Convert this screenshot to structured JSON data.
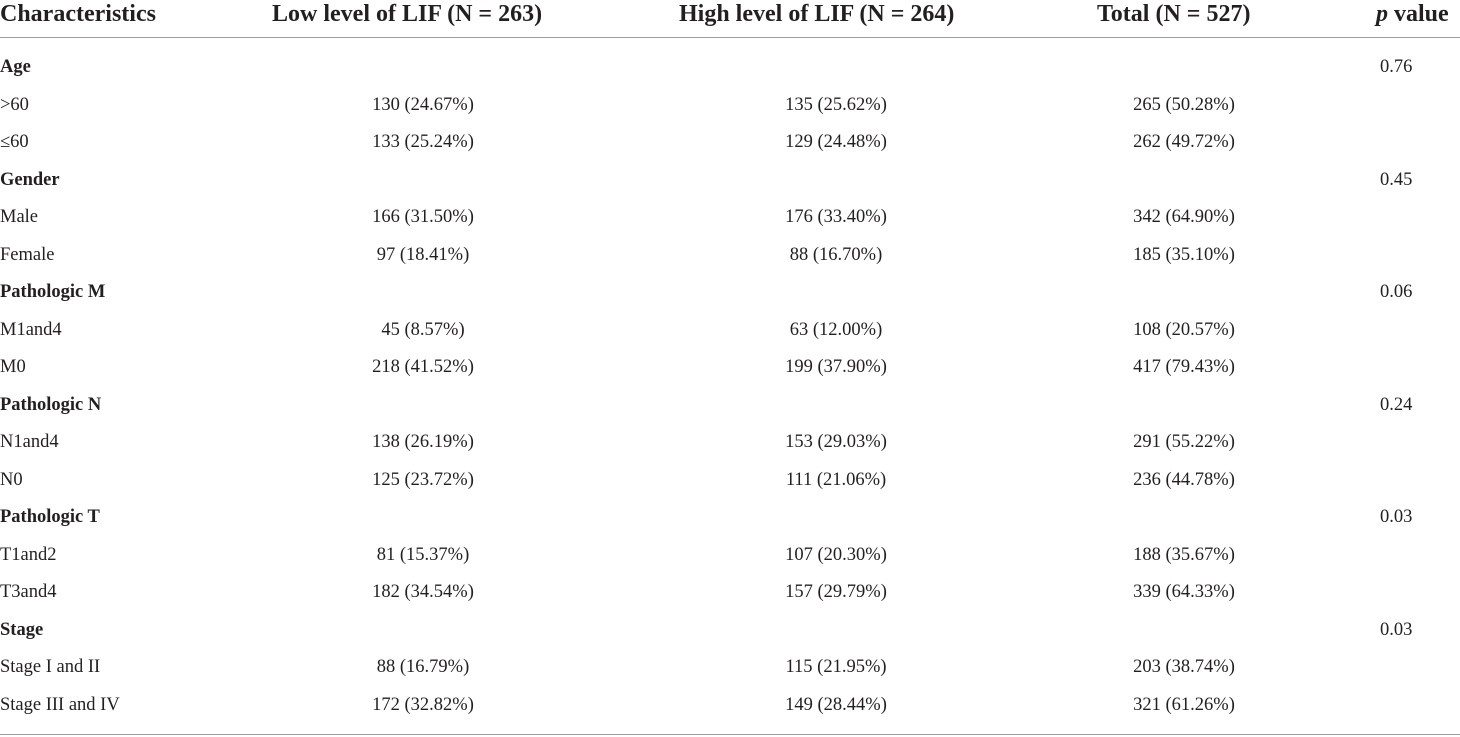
{
  "header": {
    "characteristics": "Characteristics",
    "low": "Low level of LIF (N = 263)",
    "high": "High level of LIF (N = 264)",
    "total": "Total (N = 527)",
    "p_italic": "p",
    "p_rest": " value"
  },
  "rows": [
    {
      "type": "group",
      "label": "Age",
      "low": "",
      "high": "",
      "total": "",
      "p": "0.76"
    },
    {
      "type": "item",
      "label": ">60",
      "low": "130 (24.67%)",
      "high": "135 (25.62%)",
      "total": "265 (50.28%)",
      "p": ""
    },
    {
      "type": "item",
      "label": "≤60",
      "low": "133 (25.24%)",
      "high": "129 (24.48%)",
      "total": "262 (49.72%)",
      "p": ""
    },
    {
      "type": "group",
      "label": "Gender",
      "low": "",
      "high": "",
      "total": "",
      "p": "0.45"
    },
    {
      "type": "item",
      "label": "Male",
      "low": "166 (31.50%)",
      "high": "176 (33.40%)",
      "total": "342 (64.90%)",
      "p": ""
    },
    {
      "type": "item",
      "label": "Female",
      "low": "97 (18.41%)",
      "high": "88 (16.70%)",
      "total": "185 (35.10%)",
      "p": ""
    },
    {
      "type": "group",
      "label": "Pathologic M",
      "low": "",
      "high": "",
      "total": "",
      "p": "0.06"
    },
    {
      "type": "item",
      "label": "M1and4",
      "low": "45 (8.57%)",
      "high": "63 (12.00%)",
      "total": "108 (20.57%)",
      "p": ""
    },
    {
      "type": "item",
      "label": "M0",
      "low": "218 (41.52%)",
      "high": "199 (37.90%)",
      "total": "417 (79.43%)",
      "p": ""
    },
    {
      "type": "group",
      "label": "Pathologic N",
      "low": "",
      "high": "",
      "total": "",
      "p": "0.24"
    },
    {
      "type": "item",
      "label": "N1and4",
      "low": "138 (26.19%)",
      "high": "153 (29.03%)",
      "total": "291 (55.22%)",
      "p": ""
    },
    {
      "type": "item",
      "label": "N0",
      "low": "125 (23.72%)",
      "high": "111 (21.06%)",
      "total": "236 (44.78%)",
      "p": ""
    },
    {
      "type": "group",
      "label": "Pathologic T",
      "low": "",
      "high": "",
      "total": "",
      "p": "0.03"
    },
    {
      "type": "item",
      "label": "T1and2",
      "low": "81 (15.37%)",
      "high": "107 (20.30%)",
      "total": "188 (35.67%)",
      "p": ""
    },
    {
      "type": "item",
      "label": "T3and4",
      "low": "182 (34.54%)",
      "high": "157 (29.79%)",
      "total": "339 (64.33%)",
      "p": ""
    },
    {
      "type": "group",
      "label": "Stage",
      "low": "",
      "high": "",
      "total": "",
      "p": "0.03"
    },
    {
      "type": "item",
      "label": "Stage I and II",
      "low": "88 (16.79%)",
      "high": "115 (21.95%)",
      "total": "203 (38.74%)",
      "p": ""
    },
    {
      "type": "item",
      "label": "Stage III and IV",
      "low": "172 (32.82%)",
      "high": "149 (28.44%)",
      "total": "321 (61.26%)",
      "p": ""
    }
  ]
}
